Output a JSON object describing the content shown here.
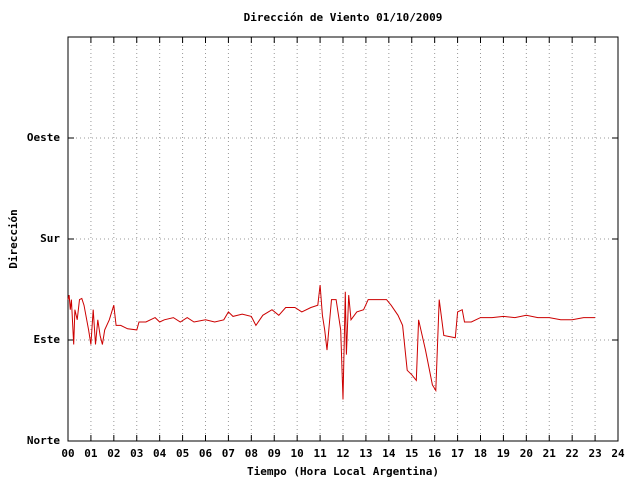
{
  "chart_data": {
    "type": "line",
    "title": "Dirección de Viento 01/10/2009",
    "xlabel": "Tiempo (Hora Local Argentina)",
    "ylabel": "Dirección",
    "xlim": [
      0,
      24
    ],
    "ylim": [
      0,
      360
    ],
    "xticks": [
      {
        "value": 0,
        "label": "00"
      },
      {
        "value": 1,
        "label": "01"
      },
      {
        "value": 2,
        "label": "02"
      },
      {
        "value": 3,
        "label": "03"
      },
      {
        "value": 4,
        "label": "04"
      },
      {
        "value": 5,
        "label": "05"
      },
      {
        "value": 6,
        "label": "06"
      },
      {
        "value": 7,
        "label": "07"
      },
      {
        "value": 8,
        "label": "08"
      },
      {
        "value": 9,
        "label": "09"
      },
      10,
      11,
      12,
      13,
      14,
      15,
      16,
      17,
      18,
      19,
      20,
      21,
      22,
      23,
      24
    ],
    "yticks": [
      {
        "value": 0,
        "label": "Norte"
      },
      {
        "value": 90,
        "label": "Este"
      },
      {
        "value": 180,
        "label": "Sur"
      },
      {
        "value": 270,
        "label": "Oeste"
      }
    ],
    "grid": true,
    "series": [
      {
        "color": "#cc0000",
        "x": [
          0.0,
          0.05,
          0.1,
          0.15,
          0.25,
          0.3,
          0.4,
          0.5,
          0.6,
          0.7,
          0.9,
          1.0,
          1.1,
          1.2,
          1.3,
          1.4,
          1.5,
          1.6,
          1.8,
          2.0,
          2.1,
          2.3,
          2.6,
          3.0,
          3.1,
          3.4,
          3.8,
          4.0,
          4.2,
          4.6,
          4.9,
          5.2,
          5.5,
          6.0,
          6.4,
          6.8,
          7.0,
          7.2,
          7.6,
          8.0,
          8.2,
          8.5,
          8.9,
          9.2,
          9.5,
          9.9,
          10.2,
          10.6,
          10.9,
          11.0,
          11.1,
          11.2,
          11.3,
          11.5,
          11.7,
          11.9,
          12.0,
          12.1,
          12.15,
          12.25,
          12.35,
          12.6,
          12.9,
          13.1,
          13.4,
          13.9,
          14.1,
          14.4,
          14.6,
          14.8,
          15.0,
          15.2,
          15.3,
          15.6,
          15.9,
          16.05,
          16.2,
          16.4,
          16.9,
          17.0,
          17.2,
          17.3,
          17.6,
          18.0,
          18.5,
          19.0,
          19.5,
          20.0,
          20.5,
          21.0,
          21.5,
          22.0,
          22.5,
          23.0
        ],
        "values": [
          126,
          130,
          117,
          126,
          86,
          117,
          108,
          126,
          127,
          121,
          99,
          86,
          117,
          86,
          108,
          94,
          86,
          99,
          108,
          121,
          103,
          103,
          100,
          99,
          106,
          106,
          110,
          106,
          108,
          110,
          106,
          110,
          106,
          108,
          106,
          108,
          115,
          111,
          113,
          111,
          103,
          112,
          117,
          112,
          119,
          119,
          115,
          119,
          121,
          139,
          112,
          99,
          81,
          126,
          126,
          99,
          37,
          133,
          77,
          130,
          108,
          115,
          117,
          126,
          126,
          126,
          121,
          112,
          103,
          63,
          59,
          54,
          108,
          81,
          50,
          45,
          126,
          94,
          92,
          115,
          117,
          106,
          106,
          110,
          110,
          111,
          110,
          112,
          110,
          110,
          108,
          108,
          110,
          110
        ]
      }
    ]
  }
}
